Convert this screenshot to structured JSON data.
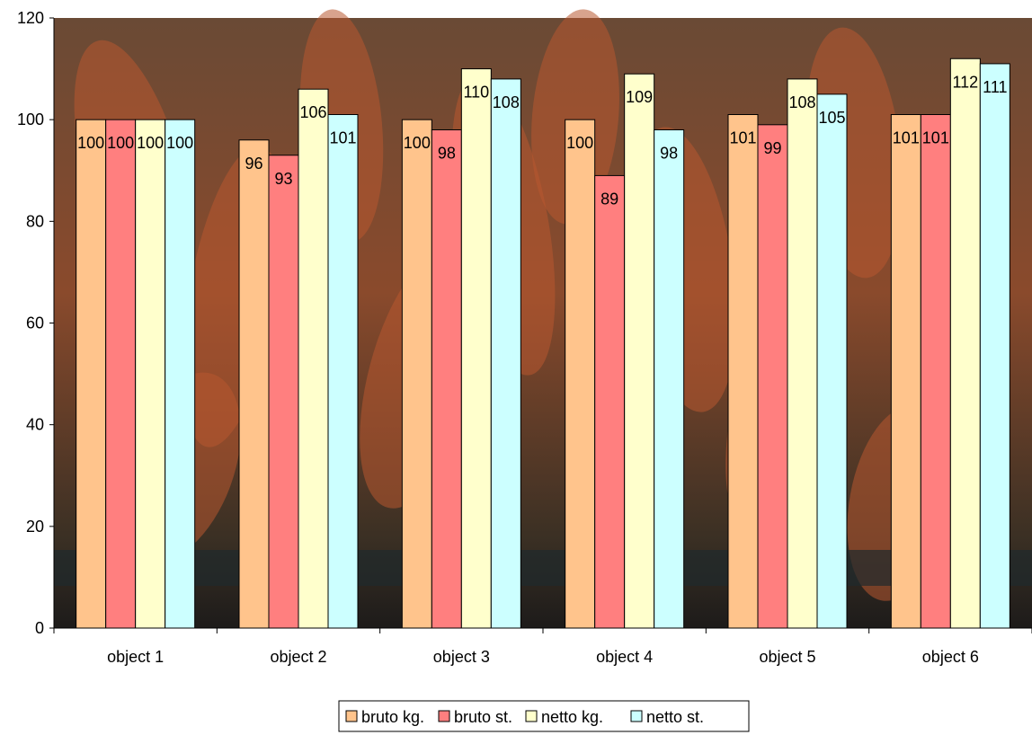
{
  "chart_data": {
    "type": "bar",
    "title": "",
    "xlabel": "",
    "ylabel": "",
    "ylim": [
      0,
      120
    ],
    "yticks": [
      0,
      20,
      40,
      60,
      80,
      100,
      120
    ],
    "grid": false,
    "legend_position": "bottom",
    "background": "photo of carrots",
    "categories": [
      "object 1",
      "object 2",
      "object 3",
      "object 4",
      "object 5",
      "object 6"
    ],
    "series": [
      {
        "name": "bruto kg.",
        "color": "#FFC48C",
        "values": [
          100,
          96,
          100,
          100,
          101,
          101
        ]
      },
      {
        "name": "bruto st.",
        "color": "#FF7F7F",
        "values": [
          100,
          93,
          98,
          89,
          99,
          101
        ]
      },
      {
        "name": "netto kg.",
        "color": "#FFFFCC",
        "values": [
          100,
          106,
          110,
          109,
          108,
          112
        ]
      },
      {
        "name": "netto st.",
        "color": "#CCFFFF",
        "values": [
          100,
          101,
          108,
          98,
          105,
          111
        ]
      }
    ]
  }
}
